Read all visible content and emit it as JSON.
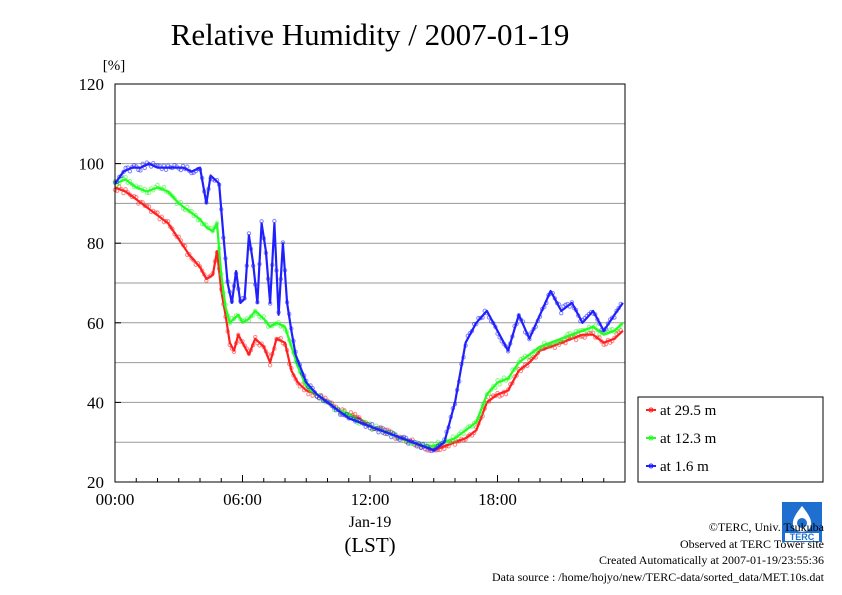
{
  "chart_data": {
    "type": "line",
    "title": "Relative Humidity / 2007-01-19",
    "ylabel": "[%]",
    "xlabel": "Jan-19",
    "x_unit_label": "(LST)",
    "ylim": [
      20,
      120
    ],
    "yticks": [
      20,
      40,
      60,
      80,
      100,
      120
    ],
    "xlim": [
      0,
      24
    ],
    "xticks": [
      "00:00",
      "06:00",
      "12:00",
      "18:00"
    ],
    "grid": true,
    "legend_position": "right-bottom",
    "series": [
      {
        "name": "at 29.5 m",
        "color": "#ff2020",
        "x": [
          0,
          0.5,
          1,
          1.5,
          2,
          2.5,
          3,
          3.5,
          4,
          4.3,
          4.6,
          4.8,
          5,
          5.2,
          5.4,
          5.6,
          5.8,
          6,
          6.3,
          6.6,
          7,
          7.3,
          7.6,
          8,
          8.3,
          8.6,
          9,
          9.5,
          10,
          10.5,
          11,
          11.5,
          12,
          12.5,
          13,
          13.5,
          14,
          14.5,
          15,
          15.5,
          16,
          16.5,
          17,
          17.5,
          18,
          18.5,
          19,
          19.5,
          20,
          20.5,
          21,
          21.5,
          22,
          22.5,
          23,
          23.5,
          23.9
        ],
        "y": [
          94,
          93,
          91,
          89,
          87,
          85,
          81,
          77,
          74,
          71,
          72,
          78,
          68,
          62,
          55,
          53,
          57,
          55,
          52,
          56,
          54,
          50,
          56,
          55,
          48,
          45,
          43,
          42,
          40,
          38,
          37,
          36,
          34,
          33,
          32,
          31,
          30,
          29,
          28,
          29,
          30,
          31,
          33,
          40,
          42,
          43,
          48,
          50,
          53,
          54,
          55,
          56,
          57,
          57,
          55,
          56,
          58
        ]
      },
      {
        "name": "at 12.3 m",
        "color": "#20ff20",
        "x": [
          0,
          0.5,
          1,
          1.5,
          2,
          2.5,
          3,
          3.5,
          4,
          4.3,
          4.6,
          4.8,
          5,
          5.2,
          5.4,
          5.6,
          5.8,
          6,
          6.3,
          6.6,
          7,
          7.3,
          7.6,
          8,
          8.3,
          8.6,
          9,
          9.5,
          10,
          10.5,
          11,
          11.5,
          12,
          12.5,
          13,
          13.5,
          14,
          14.5,
          15,
          15.5,
          16,
          16.5,
          17,
          17.5,
          18,
          18.5,
          19,
          19.5,
          20,
          20.5,
          21,
          21.5,
          22,
          22.5,
          23,
          23.5,
          23.9
        ],
        "y": [
          95,
          96,
          94,
          93,
          94,
          93,
          90,
          88,
          86,
          84,
          83,
          85,
          72,
          64,
          60,
          61,
          62,
          60,
          61,
          63,
          61,
          59,
          60,
          59,
          54,
          49,
          44,
          42,
          40,
          38,
          37,
          35,
          34,
          33,
          32,
          31,
          30,
          29,
          29,
          30,
          31,
          33,
          35,
          42,
          45,
          46,
          50,
          52,
          54,
          55,
          56,
          57,
          58,
          59,
          57,
          58,
          60
        ]
      },
      {
        "name": "at 1.6 m",
        "color": "#2020ff",
        "x": [
          0,
          0.4,
          0.8,
          1.2,
          1.6,
          2,
          2.4,
          2.8,
          3.2,
          3.6,
          4,
          4.3,
          4.5,
          4.7,
          4.9,
          5.1,
          5.3,
          5.5,
          5.7,
          5.9,
          6.1,
          6.3,
          6.5,
          6.7,
          6.9,
          7.1,
          7.3,
          7.5,
          7.7,
          7.9,
          8.1,
          8.3,
          8.5,
          9,
          9.5,
          10,
          10.5,
          11,
          11.5,
          12,
          12.5,
          13,
          13.5,
          14,
          14.5,
          15,
          15.5,
          16,
          16.5,
          17,
          17.5,
          18,
          18.5,
          19,
          19.5,
          20,
          20.5,
          21,
          21.5,
          22,
          22.5,
          23,
          23.5,
          23.9
        ],
        "y": [
          95,
          98,
          99,
          99,
          100,
          99,
          99,
          99,
          99,
          98,
          99,
          90,
          97,
          96,
          95,
          82,
          70,
          65,
          73,
          65,
          66,
          82,
          75,
          65,
          85,
          78,
          65,
          85,
          62,
          80,
          65,
          58,
          52,
          45,
          42,
          40,
          38,
          36,
          35,
          34,
          33,
          32,
          31,
          30,
          29,
          28,
          30,
          40,
          55,
          60,
          63,
          58,
          53,
          62,
          56,
          62,
          68,
          63,
          65,
          60,
          63,
          58,
          62,
          65
        ]
      }
    ]
  },
  "credits": {
    "line1": "©TERC, Univ. Tsukuba",
    "line2": "Observed at TERC Tower site",
    "line3": "Created Automatically at 2007-01-19/23:55:36",
    "line4": "Data source : /home/hojyo/new/TERC-data/sorted_data/MET.10s.dat"
  },
  "logo_text": "TERC"
}
